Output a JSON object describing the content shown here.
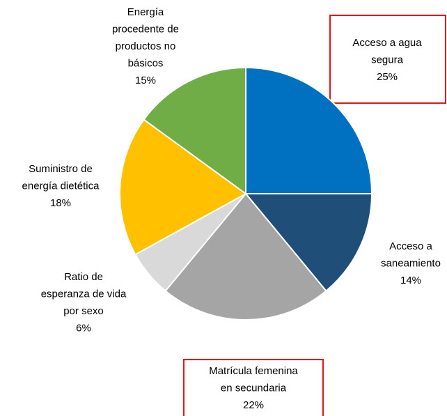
{
  "chart_data": {
    "type": "pie",
    "categories": [
      "Acceso a agua\nsegura",
      "Acceso a\nsaneamiento",
      "Matrícula femenina\nen secundaria",
      "Ratio de\nesperanza de vida\npor sexo",
      "Suministro de\nenergía dietética",
      "Energía\nprocedente de\nproductos no\nbásicos"
    ],
    "values": [
      25,
      14,
      22,
      6,
      18,
      15
    ],
    "value_labels": [
      "25%",
      "14%",
      "22%",
      "6%",
      "18%",
      "15%"
    ],
    "colors": [
      "#0070c0",
      "#1f4e79",
      "#a5a5a5",
      "#d9d9d9",
      "#ffc000",
      "#70ad47"
    ]
  }
}
